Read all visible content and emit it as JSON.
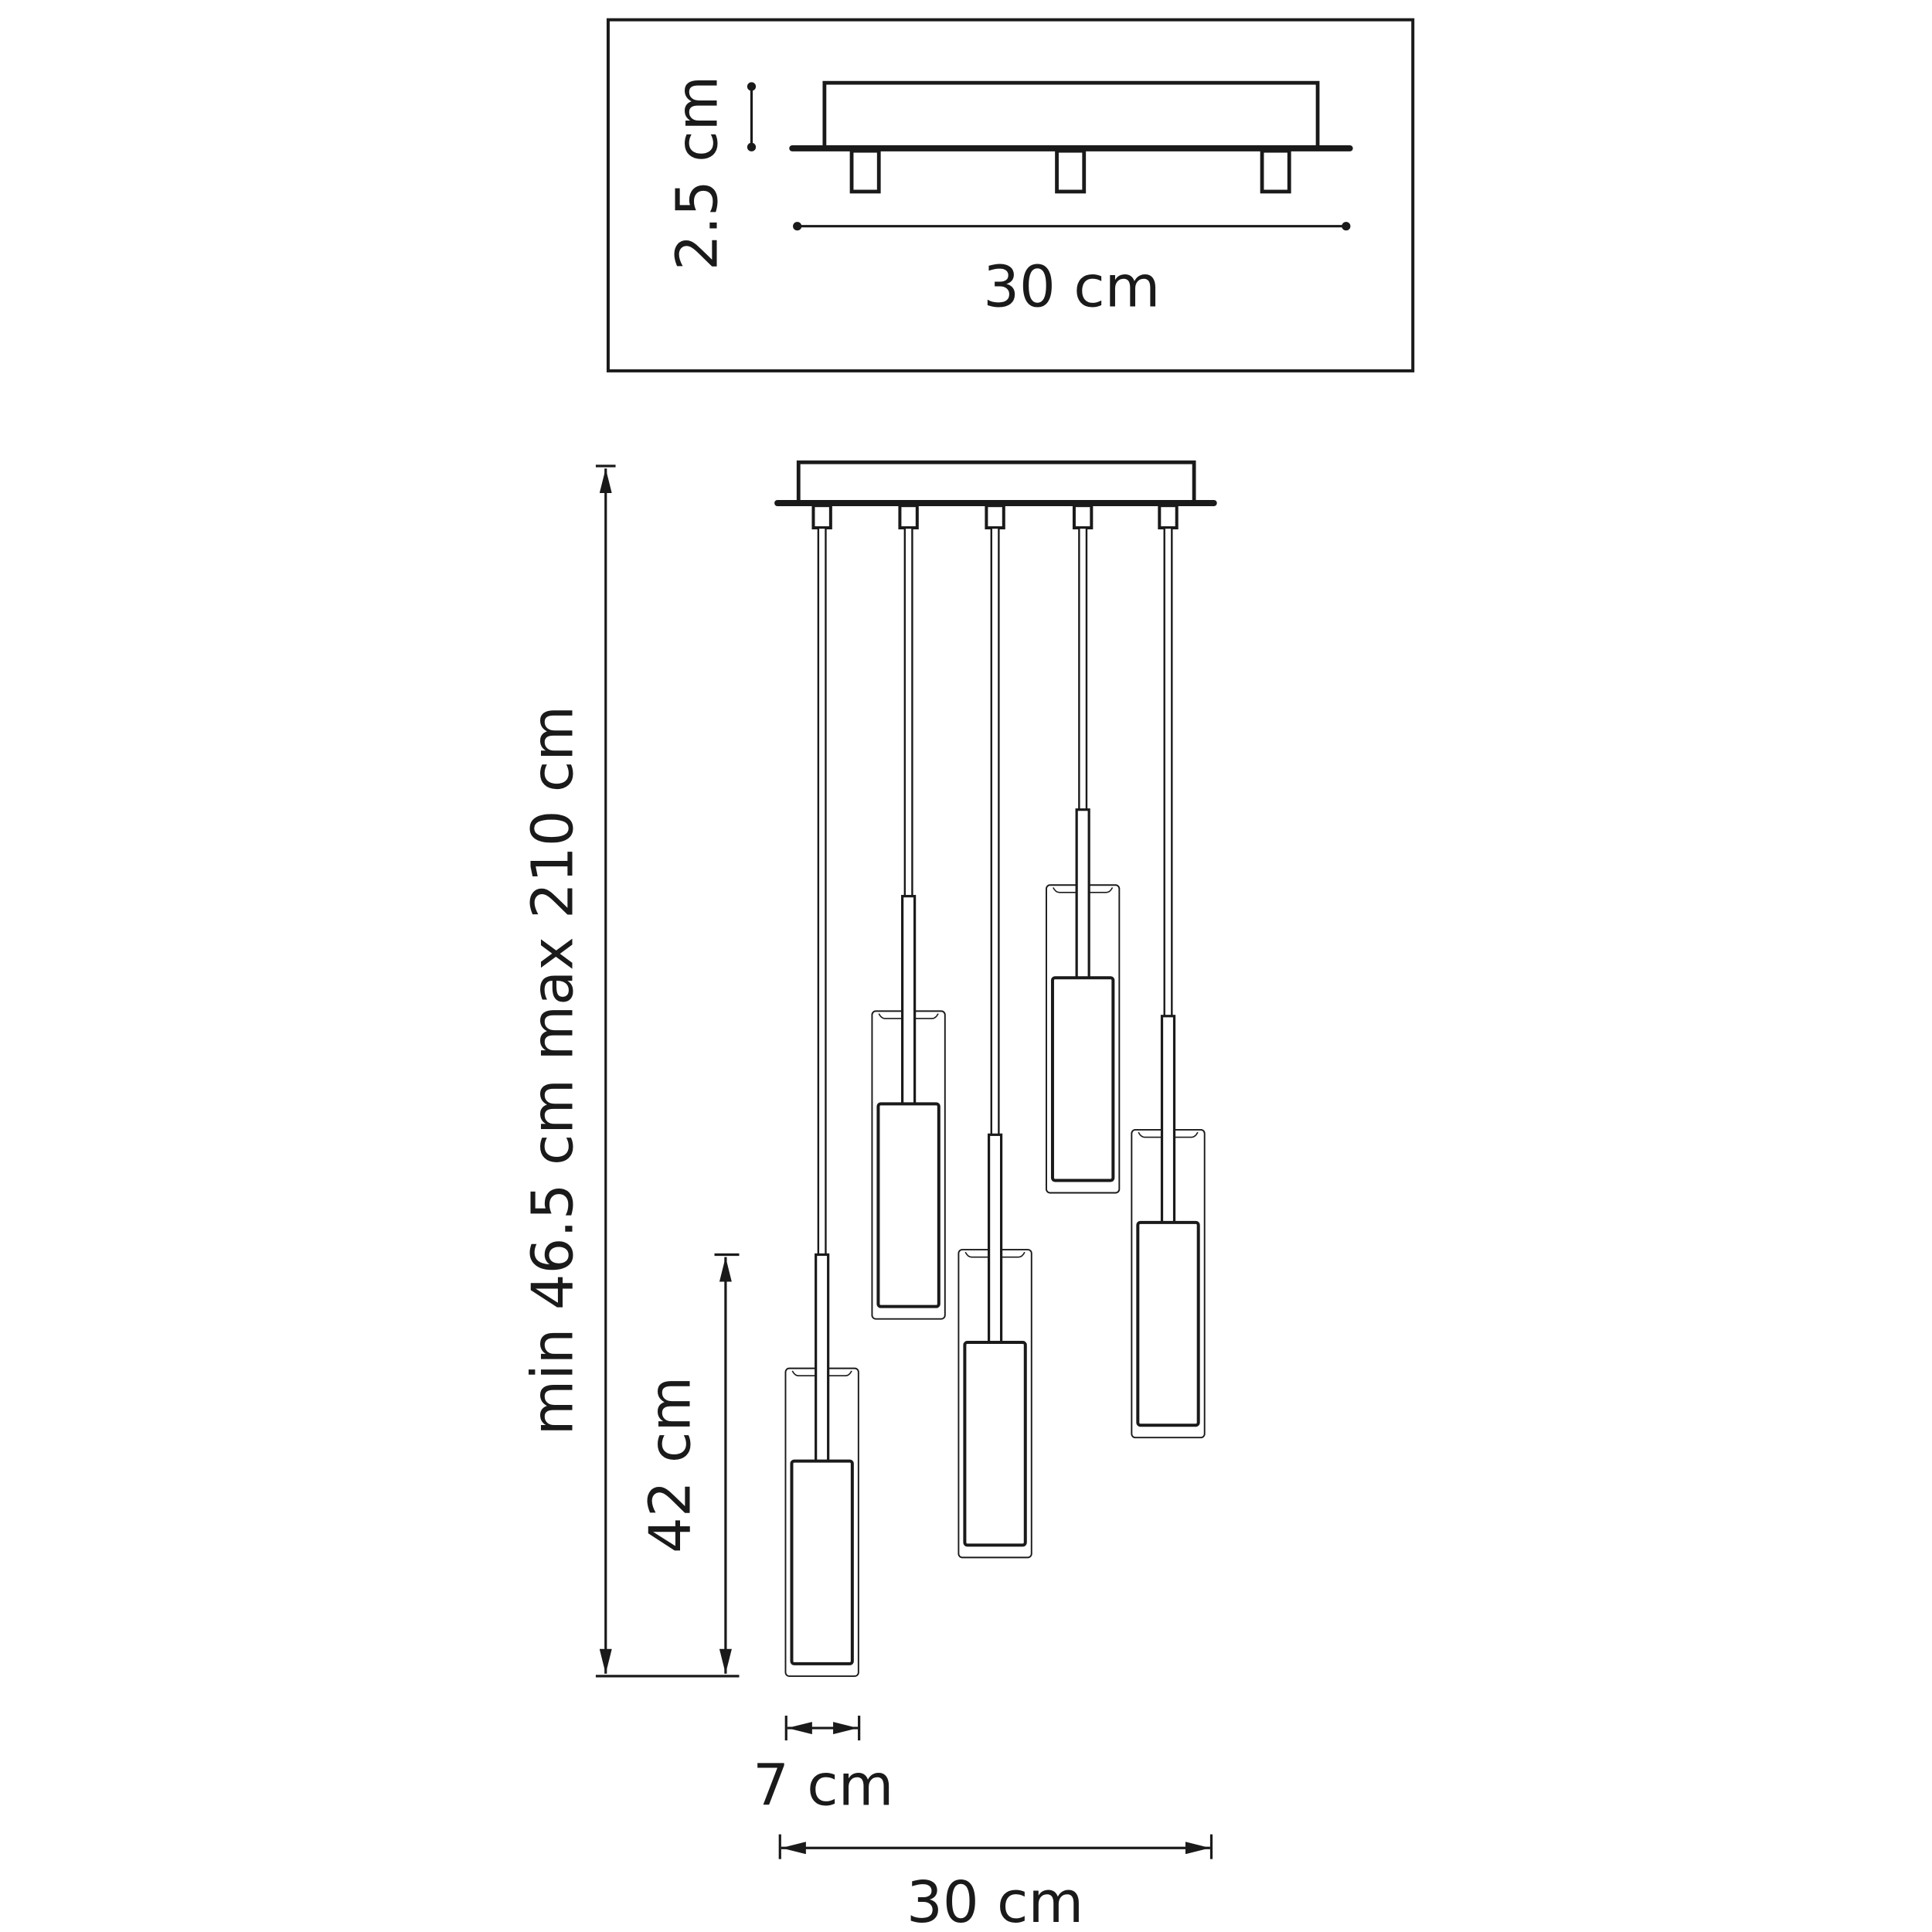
{
  "top_view": {
    "height_label": "2.5 cm",
    "width_label": "30 cm"
  },
  "front_view": {
    "drop_label": "min 46.5 cm max 210 cm",
    "shade_height_label": "42 cm",
    "shade_width_label": "7 cm",
    "total_width_label": "30 cm"
  },
  "colors": {
    "line": "#1a1a1a",
    "background": "#ffffff"
  }
}
